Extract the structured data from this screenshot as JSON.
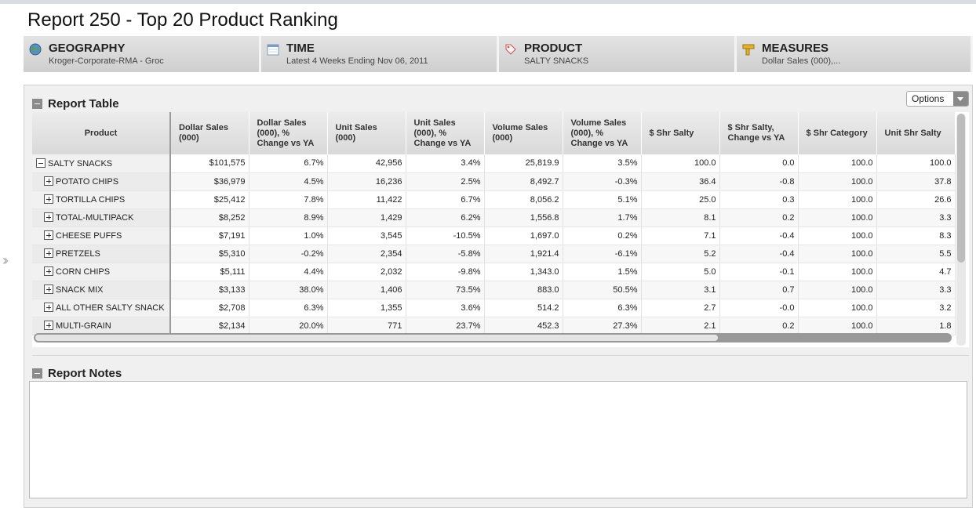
{
  "page_title": "Report 250 - Top 20 Product Ranking",
  "dimensions": [
    {
      "title": "GEOGRAPHY",
      "value": "Kroger-Corporate-RMA - Groc",
      "icon": "globe-icon"
    },
    {
      "title": "TIME",
      "value": "Latest 4 Weeks Ending Nov 06, 2011",
      "icon": "calendar-icon"
    },
    {
      "title": "PRODUCT",
      "value": "SALTY SNACKS",
      "icon": "tag-icon"
    },
    {
      "title": "MEASURES",
      "value": "Dollar Sales (000),...",
      "icon": "ruler-icon"
    }
  ],
  "report_table": {
    "label": "Report Table",
    "options_label": "Options",
    "columns": [
      "Product",
      "Dollar Sales (000)",
      "Dollar Sales (000), % Change vs YA",
      "Unit Sales (000)",
      "Unit Sales (000), % Change vs YA",
      "Volume Sales (000)",
      "Volume Sales (000), % Change vs YA",
      "$ Shr Salty",
      "$ Shr Salty, Change vs YA",
      "$ Shr Category",
      "Unit Shr Salty"
    ],
    "rows": [
      {
        "product": "SALTY SNACKS",
        "expander": "minus",
        "values": [
          "$101,575",
          "6.7%",
          "42,956",
          "3.4%",
          "25,819.9",
          "3.5%",
          "100.0",
          "0.0",
          "100.0",
          "100.0"
        ]
      },
      {
        "product": "POTATO CHIPS",
        "expander": "plus",
        "values": [
          "$36,979",
          "4.5%",
          "16,236",
          "2.5%",
          "8,492.7",
          "-0.3%",
          "36.4",
          "-0.8",
          "100.0",
          "37.8"
        ]
      },
      {
        "product": "TORTILLA CHIPS",
        "expander": "plus",
        "values": [
          "$25,412",
          "7.8%",
          "11,422",
          "6.7%",
          "8,056.2",
          "5.1%",
          "25.0",
          "0.3",
          "100.0",
          "26.6"
        ]
      },
      {
        "product": "TOTAL-MULTIPACK",
        "expander": "plus",
        "values": [
          "$8,252",
          "8.9%",
          "1,429",
          "6.2%",
          "1,556.8",
          "1.7%",
          "8.1",
          "0.2",
          "100.0",
          "3.3"
        ]
      },
      {
        "product": "CHEESE PUFFS",
        "expander": "plus",
        "values": [
          "$7,191",
          "1.0%",
          "3,545",
          "-10.5%",
          "1,697.0",
          "0.2%",
          "7.1",
          "-0.4",
          "100.0",
          "8.3"
        ]
      },
      {
        "product": "PRETZELS",
        "expander": "plus",
        "values": [
          "$5,310",
          "-0.2%",
          "2,354",
          "-5.8%",
          "1,921.4",
          "-6.1%",
          "5.2",
          "-0.4",
          "100.0",
          "5.5"
        ]
      },
      {
        "product": "CORN CHIPS",
        "expander": "plus",
        "values": [
          "$5,111",
          "4.4%",
          "2,032",
          "-9.8%",
          "1,343.0",
          "1.5%",
          "5.0",
          "-0.1",
          "100.0",
          "4.7"
        ]
      },
      {
        "product": "SNACK MIX",
        "expander": "plus",
        "values": [
          "$3,133",
          "38.0%",
          "1,406",
          "73.5%",
          "883.0",
          "50.5%",
          "3.1",
          "0.7",
          "100.0",
          "3.3"
        ]
      },
      {
        "product": "ALL OTHER SALTY SNACK",
        "expander": "plus",
        "values": [
          "$2,708",
          "6.3%",
          "1,355",
          "3.6%",
          "514.2",
          "6.3%",
          "2.7",
          "-0.0",
          "100.0",
          "3.2"
        ]
      },
      {
        "product": "MULTI-GRAIN",
        "expander": "plus",
        "values": [
          "$2,134",
          "20.0%",
          "771",
          "23.7%",
          "452.3",
          "27.3%",
          "2.1",
          "0.2",
          "100.0",
          "1.8"
        ]
      }
    ]
  },
  "report_notes": {
    "label": "Report Notes"
  }
}
